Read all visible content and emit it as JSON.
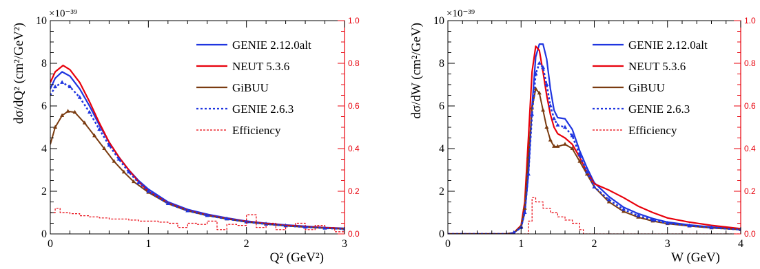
{
  "colors": {
    "genie_alt": "#1f35e0",
    "neut": "#e8000b",
    "gibuu": "#7a3b10",
    "genie_263": "#1f35e0",
    "efficiency": "#e8000b"
  },
  "chart_data": [
    {
      "type": "line",
      "xlabel": "Q² (GeV²)",
      "ylabel": "dσ/dQ² (cm²/GeV²)",
      "y_exponent": "×10⁻³⁹",
      "xlim": [
        0,
        3
      ],
      "ylim": [
        0,
        10
      ],
      "y2lim": [
        0,
        1.0
      ],
      "x_ticks": [
        "0",
        "1",
        "2",
        "3"
      ],
      "y_ticks": [
        "0",
        "2",
        "4",
        "6",
        "8",
        "10"
      ],
      "y2_ticks": [
        "0.0",
        "0.2",
        "0.4",
        "0.6",
        "0.8",
        "1.0"
      ],
      "legend_position": "top-right",
      "series": [
        {
          "name": "GENIE 2.12.0alt",
          "style": "solid",
          "axis": "left",
          "x": [
            0.0,
            0.05,
            0.12,
            0.2,
            0.3,
            0.4,
            0.5,
            0.6,
            0.7,
            0.8,
            0.9,
            1.0,
            1.2,
            1.4,
            1.6,
            1.8,
            2.0,
            2.2,
            2.4,
            2.6,
            2.8,
            3.0
          ],
          "y": [
            6.8,
            7.3,
            7.6,
            7.4,
            6.8,
            6.0,
            5.1,
            4.3,
            3.6,
            3.0,
            2.5,
            2.1,
            1.5,
            1.15,
            0.92,
            0.75,
            0.6,
            0.5,
            0.42,
            0.36,
            0.3,
            0.26
          ]
        },
        {
          "name": "NEUT 5.3.6",
          "style": "solid",
          "axis": "left",
          "x": [
            0.0,
            0.05,
            0.13,
            0.2,
            0.3,
            0.4,
            0.5,
            0.6,
            0.7,
            0.8,
            0.9,
            1.0,
            1.2,
            1.4,
            1.6,
            1.8,
            2.0,
            2.2,
            2.4,
            2.6,
            2.8,
            3.0
          ],
          "y": [
            7.1,
            7.6,
            7.9,
            7.7,
            7.1,
            6.2,
            5.2,
            4.3,
            3.6,
            3.0,
            2.45,
            2.0,
            1.45,
            1.1,
            0.88,
            0.72,
            0.58,
            0.48,
            0.4,
            0.34,
            0.29,
            0.25
          ]
        },
        {
          "name": "GiBUU",
          "style": "solid-markers",
          "axis": "left",
          "x": [
            0.0,
            0.05,
            0.12,
            0.18,
            0.25,
            0.35,
            0.45,
            0.55,
            0.65,
            0.75,
            0.85,
            1.0,
            1.2,
            1.4,
            1.6,
            1.8,
            2.0,
            2.2,
            2.4,
            2.6,
            2.8,
            3.0
          ],
          "y": [
            4.2,
            5.0,
            5.55,
            5.75,
            5.7,
            5.2,
            4.6,
            4.0,
            3.4,
            2.9,
            2.45,
            1.95,
            1.42,
            1.08,
            0.86,
            0.7,
            0.56,
            0.46,
            0.38,
            0.32,
            0.27,
            0.23
          ]
        },
        {
          "name": "GENIE 2.6.3",
          "style": "dotted-markers",
          "axis": "left",
          "x": [
            0.0,
            0.05,
            0.12,
            0.2,
            0.3,
            0.4,
            0.5,
            0.6,
            0.7,
            0.8,
            0.9,
            1.0,
            1.2,
            1.4,
            1.6,
            1.8,
            2.0,
            2.2,
            2.4,
            2.6,
            2.8,
            3.0
          ],
          "y": [
            6.5,
            6.9,
            7.1,
            6.9,
            6.4,
            5.7,
            4.9,
            4.15,
            3.5,
            2.9,
            2.4,
            2.0,
            1.42,
            1.08,
            0.86,
            0.7,
            0.56,
            0.46,
            0.38,
            0.32,
            0.27,
            0.23
          ]
        },
        {
          "name": "Efficiency",
          "style": "dashed",
          "axis": "right",
          "x": [
            0.0,
            0.05,
            0.1,
            0.2,
            0.3,
            0.4,
            0.5,
            0.6,
            0.7,
            0.8,
            0.9,
            1.0,
            1.1,
            1.2,
            1.3,
            1.4,
            1.5,
            1.6,
            1.7,
            1.8,
            1.9,
            2.0,
            2.1,
            2.2,
            2.3,
            2.4,
            2.5,
            2.6,
            2.7,
            2.8,
            2.9,
            3.0
          ],
          "y": [
            0.1,
            0.12,
            0.1,
            0.095,
            0.085,
            0.08,
            0.075,
            0.07,
            0.07,
            0.065,
            0.06,
            0.06,
            0.055,
            0.05,
            0.03,
            0.05,
            0.045,
            0.06,
            0.02,
            0.045,
            0.04,
            0.09,
            0.03,
            0.05,
            0.02,
            0.04,
            0.05,
            0.02,
            0.04,
            0.03,
            0.01,
            0.05
          ]
        }
      ]
    },
    {
      "type": "line",
      "xlabel": "W (GeV)",
      "ylabel": "dσ/dW (cm²/GeV)",
      "y_exponent": "×10⁻³⁹",
      "xlim": [
        0,
        4
      ],
      "ylim": [
        0,
        10
      ],
      "y2lim": [
        0,
        1.0
      ],
      "x_ticks": [
        "0",
        "1",
        "2",
        "3",
        "4"
      ],
      "y_ticks": [
        "0",
        "2",
        "4",
        "6",
        "8",
        "10"
      ],
      "y2_ticks": [
        "0.0",
        "0.2",
        "0.4",
        "0.6",
        "0.8",
        "1.0"
      ],
      "legend_position": "top-right",
      "series": [
        {
          "name": "GENIE 2.12.0alt",
          "style": "solid",
          "axis": "left",
          "x": [
            0.0,
            0.8,
            0.9,
            1.0,
            1.05,
            1.1,
            1.15,
            1.2,
            1.25,
            1.3,
            1.35,
            1.4,
            1.45,
            1.5,
            1.6,
            1.7,
            1.8,
            1.9,
            2.0,
            2.2,
            2.4,
            2.6,
            2.8,
            3.0,
            3.3,
            3.6,
            4.0
          ],
          "y": [
            0.0,
            0.0,
            0.05,
            0.3,
            1.0,
            2.8,
            6.0,
            8.3,
            8.9,
            8.9,
            8.2,
            6.8,
            5.8,
            5.45,
            5.4,
            4.9,
            3.9,
            3.1,
            2.4,
            1.75,
            1.25,
            0.95,
            0.72,
            0.55,
            0.42,
            0.32,
            0.22
          ]
        },
        {
          "name": "NEUT 5.3.6",
          "style": "solid",
          "axis": "left",
          "x": [
            0.0,
            0.8,
            0.9,
            1.0,
            1.05,
            1.1,
            1.15,
            1.2,
            1.25,
            1.3,
            1.35,
            1.4,
            1.45,
            1.5,
            1.6,
            1.7,
            1.8,
            1.9,
            2.0,
            2.2,
            2.4,
            2.6,
            2.8,
            3.0,
            3.3,
            3.6,
            4.0
          ],
          "y": [
            0.0,
            0.0,
            0.05,
            0.4,
            1.5,
            4.5,
            7.6,
            8.8,
            8.6,
            7.6,
            6.5,
            5.6,
            5.0,
            4.7,
            4.5,
            4.2,
            3.6,
            2.9,
            2.35,
            2.05,
            1.7,
            1.3,
            1.0,
            0.75,
            0.55,
            0.4,
            0.25
          ]
        },
        {
          "name": "GiBUU",
          "style": "solid-markers",
          "axis": "left",
          "x": [
            0.0,
            0.8,
            0.9,
            1.0,
            1.05,
            1.1,
            1.15,
            1.2,
            1.25,
            1.3,
            1.35,
            1.4,
            1.45,
            1.5,
            1.6,
            1.7,
            1.8,
            1.9,
            2.0,
            2.2,
            2.4,
            2.6,
            2.8,
            3.0,
            3.3,
            3.6,
            4.0
          ],
          "y": [
            0.0,
            0.0,
            0.05,
            0.35,
            1.2,
            3.6,
            5.9,
            6.8,
            6.6,
            5.8,
            5.0,
            4.4,
            4.1,
            4.1,
            4.2,
            4.0,
            3.4,
            2.8,
            2.2,
            1.5,
            1.05,
            0.78,
            0.6,
            0.48,
            0.37,
            0.28,
            0.2
          ]
        },
        {
          "name": "GENIE 2.6.3",
          "style": "dotted-markers",
          "axis": "left",
          "x": [
            0.0,
            0.8,
            0.9,
            1.0,
            1.05,
            1.1,
            1.15,
            1.2,
            1.25,
            1.3,
            1.35,
            1.4,
            1.45,
            1.5,
            1.6,
            1.7,
            1.8,
            1.9,
            2.0,
            2.2,
            2.4,
            2.6,
            2.8,
            3.0,
            3.3,
            3.6,
            4.0
          ],
          "y": [
            0.0,
            0.0,
            0.05,
            0.3,
            1.0,
            2.8,
            5.6,
            7.5,
            8.0,
            7.8,
            7.0,
            6.0,
            5.4,
            5.1,
            5.0,
            4.6,
            3.7,
            2.9,
            2.2,
            1.6,
            1.15,
            0.85,
            0.65,
            0.5,
            0.38,
            0.29,
            0.2
          ]
        },
        {
          "name": "Efficiency",
          "style": "dashed",
          "axis": "right",
          "x": [
            0.0,
            1.05,
            1.1,
            1.15,
            1.2,
            1.3,
            1.4,
            1.5,
            1.6,
            1.7,
            1.8,
            1.85,
            4.0
          ],
          "y": [
            0.0,
            0.0,
            0.06,
            0.17,
            0.15,
            0.12,
            0.1,
            0.08,
            0.065,
            0.05,
            0.02,
            0.0,
            0.0
          ]
        }
      ]
    }
  ]
}
